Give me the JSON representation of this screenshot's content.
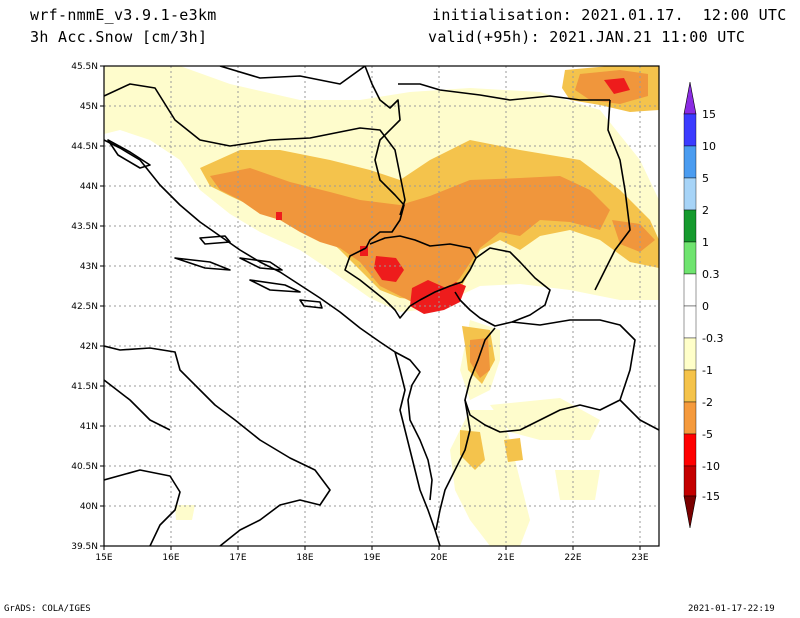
{
  "header": {
    "model": "wrf-nmmE_v3.9.1-e3km",
    "field": "3h Acc.Snow [cm/3h]",
    "init": "initialisation: 2021.01.17.  12:00 UTC",
    "valid": "valid(+95h): 2021.JAN.21 11:00 UTC"
  },
  "footer": {
    "credit": "GrADS: COLA/IGES",
    "timestamp": "2021-01-17-22:19"
  },
  "map": {
    "lat_labels": [
      "45.5N",
      "45N",
      "44.5N",
      "44N",
      "43.5N",
      "43N",
      "42.5N",
      "42N",
      "41.5N",
      "41N",
      "40.5N",
      "40N",
      "39.5N"
    ],
    "lon_labels": [
      "15E",
      "16E",
      "17E",
      "18E",
      "19E",
      "20E",
      "21E",
      "22E",
      "23E"
    ],
    "lat_range": [
      39.5,
      45.5
    ],
    "lon_range": [
      15,
      23.3
    ],
    "grid": true
  },
  "colorbar": {
    "levels": [
      "15",
      "10",
      "5",
      "2",
      "1",
      "0.3",
      "0",
      "-0.3",
      "-1",
      "-2",
      "-5",
      "-10",
      "-15"
    ],
    "colors": [
      "#8a2be2",
      "#3b3bff",
      "#4a9cf0",
      "#a7d4f7",
      "#159a2d",
      "#6fe46f",
      "#ffffff",
      "#ffffc9",
      "#f5c34a",
      "#f59a3c",
      "#ff0000",
      "#c40000",
      "#7a0000"
    ]
  },
  "colors": {
    "very_light": "#fefccc",
    "light": "#f4c34c",
    "medium": "#f0963c",
    "heavy": "#ee1c1c"
  }
}
